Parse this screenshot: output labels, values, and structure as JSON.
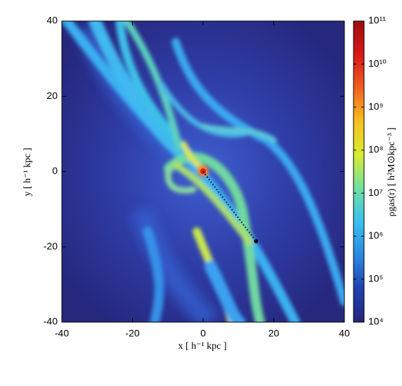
{
  "chart_data": {
    "type": "heatmap",
    "xlabel": "x [ h⁻¹ kpc ]",
    "ylabel": "y [ h⁻¹ kpc ]",
    "xlim": [
      -40,
      40
    ],
    "ylim": [
      -40,
      40
    ],
    "xticks": [
      -40,
      -20,
      0,
      20,
      40
    ],
    "yticks": [
      -40,
      -20,
      0,
      20,
      40
    ],
    "trajectory": {
      "x": [
        0,
        15
      ],
      "y": [
        0,
        -18.5
      ],
      "color": "#000000"
    },
    "colorbar": {
      "label": "ρgas(r) [ h²M⊙kpc⁻³ ]",
      "log": true,
      "clim": [
        10000,
        100000000000
      ],
      "ticks": [
        {
          "value": 10000,
          "label": "10⁴"
        },
        {
          "value": 100000,
          "label": "10⁵"
        },
        {
          "value": 1000000,
          "label": "10⁶"
        },
        {
          "value": 10000000,
          "label": "10⁷"
        },
        {
          "value": 100000000,
          "label": "10⁸"
        },
        {
          "value": 1000000000,
          "label": "10⁹"
        },
        {
          "value": 10000000000,
          "label": "10¹⁰"
        },
        {
          "value": 100000000000,
          "label": "10¹¹"
        }
      ],
      "colormap": [
        "#26267a",
        "#2040b0",
        "#2a8ae0",
        "#38c0f0",
        "#70e0a0",
        "#d8ec30",
        "#f8c020",
        "#f06020",
        "#d81818",
        "#a00c0c"
      ]
    }
  }
}
